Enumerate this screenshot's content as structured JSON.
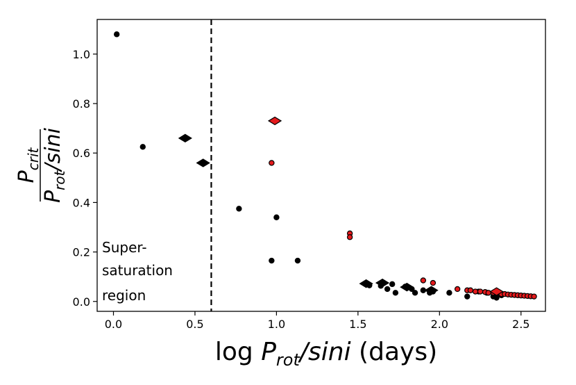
{
  "chart_data": {
    "type": "scatter",
    "xlabel": {
      "prefix": "log ",
      "italic_main": "P",
      "sub": "rot",
      "italic_rest": "/sini",
      "suffix": " (days)"
    },
    "ylabel": {
      "num_main": "P",
      "num_sub": "crit",
      "den_main": "P",
      "den_sub": "rot",
      "den_rest": "/sini"
    },
    "xlim": [
      -0.1,
      2.65
    ],
    "ylim": [
      -0.04,
      1.14
    ],
    "xticks": [
      0.0,
      0.5,
      1.0,
      1.5,
      2.0,
      2.5
    ],
    "xtick_labels": [
      "0.0",
      "0.5",
      "1.0",
      "1.5",
      "2.0",
      "2.5"
    ],
    "yticks": [
      0.0,
      0.2,
      0.4,
      0.6,
      0.8,
      1.0
    ],
    "ytick_labels": [
      "0.0",
      "0.2",
      "0.4",
      "0.6",
      "0.8",
      "1.0"
    ],
    "vline": {
      "x": 0.6,
      "style": "dashed"
    },
    "annotation": [
      "Super-",
      "saturation",
      "region"
    ],
    "colors": {
      "black": "#000000",
      "red": "#e41a1c"
    },
    "series": [
      {
        "name": "black-circles",
        "marker": "circle",
        "color": "black",
        "edge": "black",
        "points": [
          [
            0.02,
            1.08
          ],
          [
            0.18,
            0.625
          ],
          [
            0.77,
            0.375
          ],
          [
            1.0,
            0.34
          ],
          [
            0.97,
            0.165
          ],
          [
            1.13,
            0.165
          ],
          [
            1.57,
            0.065
          ],
          [
            1.64,
            0.063
          ],
          [
            1.68,
            0.05
          ],
          [
            1.71,
            0.07
          ],
          [
            1.73,
            0.035
          ],
          [
            1.79,
            0.06
          ],
          [
            1.83,
            0.05
          ],
          [
            1.85,
            0.035
          ],
          [
            1.9,
            0.045
          ],
          [
            1.94,
            0.035
          ],
          [
            1.96,
            0.04
          ],
          [
            2.06,
            0.035
          ],
          [
            2.17,
            0.02
          ],
          [
            2.24,
            0.04
          ],
          [
            2.29,
            0.035
          ],
          [
            2.33,
            0.02
          ],
          [
            2.35,
            0.015
          ],
          [
            2.36,
            0.035
          ],
          [
            2.38,
            0.025
          ]
        ]
      },
      {
        "name": "black-diamonds",
        "marker": "diamond",
        "color": "black",
        "edge": "black",
        "points": [
          [
            0.44,
            0.66
          ],
          [
            0.55,
            0.56
          ],
          [
            1.55,
            0.072
          ],
          [
            1.65,
            0.075
          ],
          [
            1.8,
            0.058
          ],
          [
            1.95,
            0.045
          ]
        ]
      },
      {
        "name": "red-circles",
        "marker": "circle",
        "color": "red",
        "edge": "black",
        "points": [
          [
            0.97,
            0.56
          ],
          [
            1.45,
            0.275
          ],
          [
            1.45,
            0.26
          ],
          [
            1.9,
            0.085
          ],
          [
            1.96,
            0.075
          ],
          [
            2.11,
            0.05
          ],
          [
            2.17,
            0.045
          ],
          [
            2.19,
            0.045
          ],
          [
            2.22,
            0.04
          ],
          [
            2.25,
            0.04
          ],
          [
            2.28,
            0.038
          ],
          [
            2.3,
            0.035
          ],
          [
            2.33,
            0.035
          ],
          [
            2.36,
            0.035
          ],
          [
            2.38,
            0.03
          ],
          [
            2.4,
            0.03
          ],
          [
            2.42,
            0.028
          ],
          [
            2.44,
            0.027
          ],
          [
            2.46,
            0.026
          ],
          [
            2.48,
            0.025
          ],
          [
            2.5,
            0.024
          ],
          [
            2.52,
            0.023
          ],
          [
            2.54,
            0.022
          ],
          [
            2.56,
            0.021
          ],
          [
            2.58,
            0.02
          ]
        ]
      },
      {
        "name": "red-diamonds",
        "marker": "diamond",
        "color": "red",
        "edge": "black",
        "points": [
          [
            0.99,
            0.73
          ],
          [
            2.35,
            0.04
          ]
        ]
      }
    ]
  }
}
